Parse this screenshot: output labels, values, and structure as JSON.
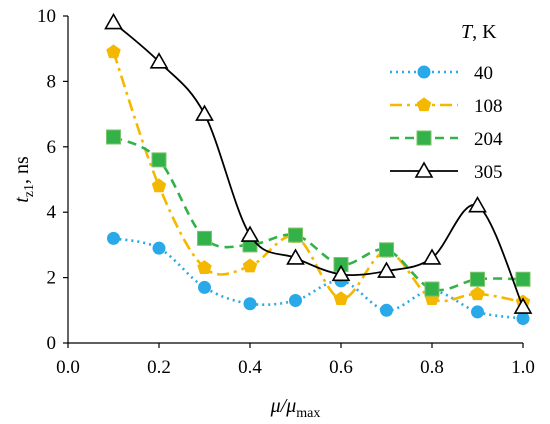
{
  "chart_data": {
    "type": "line",
    "xlabel": "μ/μmax",
    "ylabel": "tz1, ns",
    "xlim": [
      0.0,
      1.0
    ],
    "ylim": [
      0,
      10
    ],
    "xticks": [
      "0.0",
      "0.2",
      "0.4",
      "0.6",
      "0.8",
      "1.0"
    ],
    "yticks": [
      "0",
      "2",
      "4",
      "6",
      "8",
      "10"
    ],
    "legend_title": "T, K",
    "legend_position": "top-right",
    "grid": false,
    "x": [
      0.1,
      0.2,
      0.3,
      0.4,
      0.5,
      0.6,
      0.7,
      0.8,
      0.9,
      1.0
    ],
    "series": [
      {
        "name": "40",
        "color": "#29a9e8",
        "style": "dotted",
        "marker": "circle",
        "values": [
          3.2,
          2.9,
          1.7,
          1.2,
          1.3,
          1.9,
          1.0,
          1.6,
          0.95,
          0.75
        ]
      },
      {
        "name": "108",
        "color": "#f5b800",
        "style": "dashdot",
        "marker": "pentagon",
        "values": [
          8.9,
          4.8,
          2.3,
          2.35,
          3.25,
          1.35,
          2.8,
          1.35,
          1.5,
          1.25
        ]
      },
      {
        "name": "204",
        "color": "#33b24a",
        "style": "dashed",
        "marker": "square",
        "values": [
          6.3,
          5.6,
          3.2,
          3.0,
          3.3,
          2.4,
          2.85,
          1.65,
          1.95,
          1.95
        ]
      },
      {
        "name": "305",
        "color": "#000000",
        "style": "solid",
        "marker": "triangle",
        "values": [
          9.8,
          8.6,
          7.0,
          3.3,
          2.6,
          2.1,
          2.2,
          2.6,
          4.2,
          1.1
        ]
      }
    ]
  }
}
